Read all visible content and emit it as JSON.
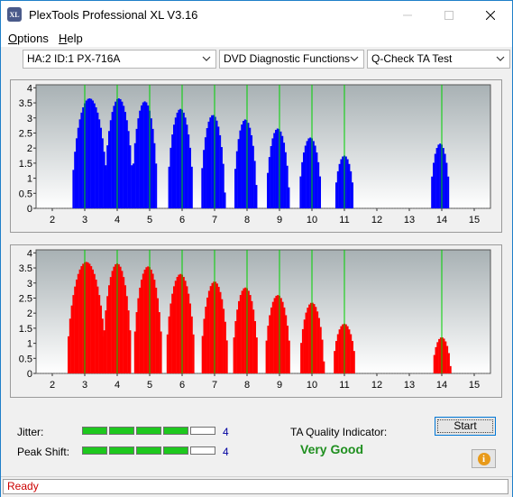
{
  "window": {
    "app_icon": "XL",
    "title": "PlexTools Professional XL V3.16",
    "controls": [
      "minimize-icon",
      "maximize-icon",
      "close-icon"
    ]
  },
  "menu": [
    {
      "label": "Options",
      "accel": "O"
    },
    {
      "label": "Help",
      "accel": "H"
    }
  ],
  "selectors": {
    "drive": "HA:2 ID:1  PX-716A",
    "function": "DVD Diagnostic Functions",
    "test": "Q-Check TA Test"
  },
  "colors": {
    "top_chart_fill": "#0000ff",
    "bottom_chart_fill": "#ff0000",
    "marker_line": "#00d000",
    "plot_bg": "#ffffff"
  },
  "chart_data": [
    {
      "type": "area",
      "name": "top-chart",
      "x_ticks": [
        2,
        3,
        4,
        5,
        6,
        7,
        8,
        9,
        10,
        11,
        12,
        13,
        14,
        15
      ],
      "y_ticks": [
        "0",
        "0.5",
        "1",
        "1.5",
        "2",
        "2.5",
        "3",
        "3.5",
        "4"
      ],
      "ylim": [
        0,
        4.1
      ],
      "xlim": [
        1.5,
        15.5
      ],
      "markers": [
        3,
        4,
        5,
        6,
        7,
        8,
        9,
        10,
        11,
        14
      ],
      "peaks": [
        {
          "center": 3.15,
          "height": 3.65,
          "halfwidth": 0.55
        },
        {
          "center": 4.05,
          "height": 3.65,
          "halfwidth": 0.45
        },
        {
          "center": 4.85,
          "height": 3.55,
          "halfwidth": 0.4
        },
        {
          "center": 5.95,
          "height": 3.3,
          "halfwidth": 0.4
        },
        {
          "center": 6.95,
          "height": 3.1,
          "halfwidth": 0.38
        },
        {
          "center": 7.95,
          "height": 2.95,
          "halfwidth": 0.36
        },
        {
          "center": 8.95,
          "height": 2.65,
          "halfwidth": 0.36
        },
        {
          "center": 9.95,
          "height": 2.35,
          "halfwidth": 0.35
        },
        {
          "center": 11.0,
          "height": 1.75,
          "halfwidth": 0.3
        },
        {
          "center": 13.95,
          "height": 2.15,
          "halfwidth": 0.3
        }
      ]
    },
    {
      "type": "area",
      "name": "bottom-chart",
      "x_ticks": [
        2,
        3,
        4,
        5,
        6,
        7,
        8,
        9,
        10,
        11,
        12,
        13,
        14,
        15
      ],
      "y_ticks": [
        "0",
        "0.5",
        "1",
        "1.5",
        "2",
        "2.5",
        "3",
        "3.5",
        "4"
      ],
      "ylim": [
        0,
        4.1
      ],
      "xlim": [
        1.5,
        15.5
      ],
      "markers": [
        3,
        4,
        5,
        6,
        7,
        8,
        9,
        10,
        11,
        14
      ],
      "peaks": [
        {
          "center": 3.05,
          "height": 3.7,
          "halfwidth": 0.6
        },
        {
          "center": 4.0,
          "height": 3.65,
          "halfwidth": 0.45
        },
        {
          "center": 4.95,
          "height": 3.55,
          "halfwidth": 0.45
        },
        {
          "center": 5.95,
          "height": 3.3,
          "halfwidth": 0.45
        },
        {
          "center": 7.0,
          "height": 3.05,
          "halfwidth": 0.42
        },
        {
          "center": 7.95,
          "height": 2.85,
          "halfwidth": 0.4
        },
        {
          "center": 8.95,
          "height": 2.6,
          "halfwidth": 0.4
        },
        {
          "center": 10.0,
          "height": 2.35,
          "halfwidth": 0.38
        },
        {
          "center": 11.0,
          "height": 1.65,
          "halfwidth": 0.35
        },
        {
          "center": 14.0,
          "height": 1.2,
          "halfwidth": 0.28
        }
      ]
    }
  ],
  "metrics": {
    "jitter_label": "Jitter:",
    "jitter_value": "4",
    "jitter_level": 4,
    "peak_label": "Peak Shift:",
    "peak_value": "4",
    "peak_level": 4,
    "level_max": 5
  },
  "ta_quality": {
    "label": "TA Quality Indicator:",
    "value": "Very Good"
  },
  "buttons": {
    "start": "Start",
    "info_icon": "info-icon"
  },
  "status": "Ready"
}
